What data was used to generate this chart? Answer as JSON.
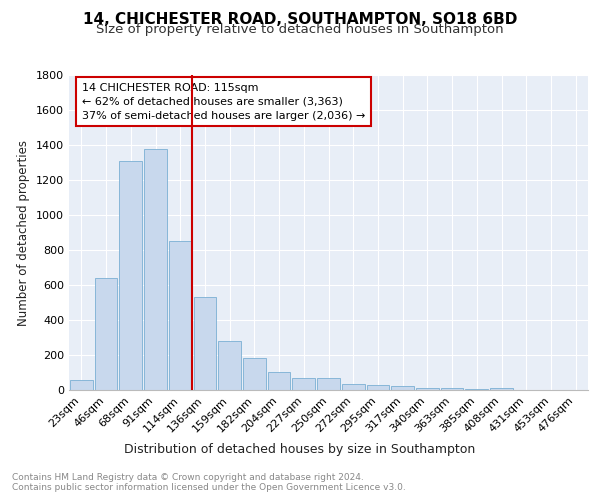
{
  "title1": "14, CHICHESTER ROAD, SOUTHAMPTON, SO18 6BD",
  "title2": "Size of property relative to detached houses in Southampton",
  "xlabel": "Distribution of detached houses by size in Southampton",
  "ylabel": "Number of detached properties",
  "categories": [
    "23sqm",
    "46sqm",
    "68sqm",
    "91sqm",
    "114sqm",
    "136sqm",
    "159sqm",
    "182sqm",
    "204sqm",
    "227sqm",
    "250sqm",
    "272sqm",
    "295sqm",
    "317sqm",
    "340sqm",
    "363sqm",
    "385sqm",
    "408sqm",
    "431sqm",
    "453sqm",
    "476sqm"
  ],
  "values": [
    55,
    640,
    1310,
    1380,
    850,
    530,
    280,
    185,
    105,
    68,
    68,
    35,
    30,
    22,
    14,
    10,
    8,
    12,
    2,
    2,
    2
  ],
  "bar_color": "#c8d8ed",
  "bar_edge_color": "#7aafd4",
  "vline_color": "#cc0000",
  "annotation_line1": "14 CHICHESTER ROAD: 115sqm",
  "annotation_line2": "← 62% of detached houses are smaller (3,363)",
  "annotation_line3": "37% of semi-detached houses are larger (2,036) →",
  "annotation_box_color": "#cc0000",
  "ylim": [
    0,
    1800
  ],
  "yticks": [
    0,
    200,
    400,
    600,
    800,
    1000,
    1200,
    1400,
    1600,
    1800
  ],
  "footnote1": "Contains HM Land Registry data © Crown copyright and database right 2024.",
  "footnote2": "Contains public sector information licensed under the Open Government Licence v3.0.",
  "plot_bg_color": "#e8eef7",
  "grid_color": "#ffffff",
  "title1_fontsize": 11,
  "title2_fontsize": 9.5,
  "xlabel_fontsize": 9,
  "ylabel_fontsize": 8.5,
  "tick_fontsize": 8,
  "footnote_fontsize": 6.5
}
